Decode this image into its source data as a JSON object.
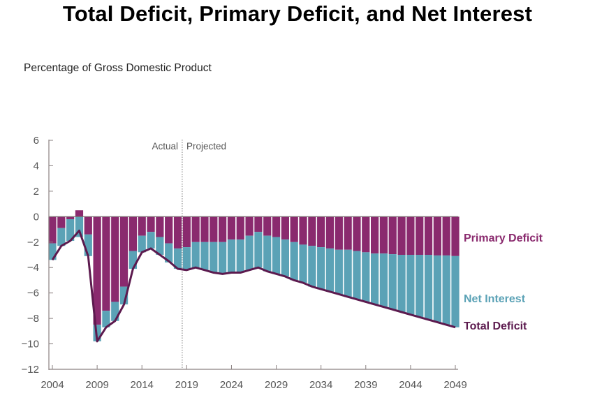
{
  "title": "Total Deficit, Primary Deficit, and Net Interest",
  "subtitle": "Percentage of Gross Domestic Product",
  "chart_data": {
    "type": "bar",
    "stacked": true,
    "title": "Total Deficit, Primary Deficit, and Net Interest",
    "ylabel": "Percentage of Gross Domestic Product",
    "xlabel": "",
    "ylim": [
      -12,
      6
    ],
    "yticks": [
      6,
      4,
      2,
      0,
      -2,
      -4,
      -6,
      -8,
      -10,
      -12
    ],
    "ytick_labels": [
      "6",
      "4",
      "2",
      "0",
      "−2",
      "−4",
      "−6",
      "−8",
      "−10",
      "−12"
    ],
    "xticks": [
      2004,
      2009,
      2014,
      2019,
      2024,
      2029,
      2034,
      2039,
      2044,
      2049
    ],
    "xtick_labels": [
      "2004",
      "2009",
      "2014",
      "2019",
      "2024",
      "2029",
      "2034",
      "2039",
      "2044",
      "2049"
    ],
    "grid": false,
    "annotations": {
      "actual_label": "Actual",
      "projected_label": "Projected",
      "divider_between": [
        2018,
        2019
      ]
    },
    "categories": [
      2004,
      2005,
      2006,
      2007,
      2008,
      2009,
      2010,
      2011,
      2012,
      2013,
      2014,
      2015,
      2016,
      2017,
      2018,
      2019,
      2020,
      2021,
      2022,
      2023,
      2024,
      2025,
      2026,
      2027,
      2028,
      2029,
      2030,
      2031,
      2032,
      2033,
      2034,
      2035,
      2036,
      2037,
      2038,
      2039,
      2040,
      2041,
      2042,
      2043,
      2044,
      2045,
      2046,
      2047,
      2048,
      2049
    ],
    "series": [
      {
        "name": "Primary Deficit",
        "type": "bar",
        "color": "#8a2a6e",
        "values": [
          -2.1,
          -0.9,
          -0.2,
          0.5,
          -1.4,
          -8.5,
          -7.4,
          -6.7,
          -5.5,
          -2.7,
          -1.5,
          -1.2,
          -1.6,
          -2.1,
          -2.5,
          -2.4,
          -2.0,
          -2.0,
          -2.0,
          -2.0,
          -1.8,
          -1.8,
          -1.5,
          -1.2,
          -1.5,
          -1.6,
          -1.8,
          -2.0,
          -2.2,
          -2.3,
          -2.4,
          -2.5,
          -2.6,
          -2.6,
          -2.7,
          -2.8,
          -2.9,
          -2.9,
          -2.95,
          -3.0,
          -3.0,
          -3.0,
          -3.0,
          -3.05,
          -3.05,
          -3.1
        ]
      },
      {
        "name": "Net Interest",
        "type": "bar",
        "color": "#5ba2b6",
        "values": [
          -1.3,
          -1.4,
          -1.7,
          -1.6,
          -1.7,
          -1.3,
          -1.3,
          -1.5,
          -1.4,
          -1.4,
          -1.3,
          -1.3,
          -1.4,
          -1.5,
          -1.6,
          -1.8,
          -2.0,
          -2.2,
          -2.4,
          -2.5,
          -2.6,
          -2.6,
          -2.7,
          -2.8,
          -2.8,
          -2.9,
          -2.9,
          -3.0,
          -3.0,
          -3.2,
          -3.3,
          -3.4,
          -3.5,
          -3.7,
          -3.8,
          -3.9,
          -4.0,
          -4.2,
          -4.35,
          -4.5,
          -4.7,
          -4.9,
          -5.1,
          -5.25,
          -5.45,
          -5.6
        ]
      },
      {
        "name": "Total Deficit",
        "type": "line",
        "color": "#5c1a4e",
        "values": [
          -3.4,
          -2.3,
          -1.9,
          -1.1,
          -3.1,
          -9.8,
          -8.7,
          -8.2,
          -6.9,
          -4.1,
          -2.8,
          -2.5,
          -3.0,
          -3.5,
          -4.1,
          -4.2,
          -4.0,
          -4.2,
          -4.4,
          -4.5,
          -4.4,
          -4.4,
          -4.2,
          -4.0,
          -4.3,
          -4.5,
          -4.7,
          -5.0,
          -5.2,
          -5.5,
          -5.7,
          -5.9,
          -6.1,
          -6.3,
          -6.5,
          -6.7,
          -6.9,
          -7.1,
          -7.3,
          -7.5,
          -7.7,
          -7.9,
          -8.1,
          -8.3,
          -8.5,
          -8.7
        ]
      }
    ],
    "legend": {
      "placement": "right (direct labels)",
      "entries": [
        {
          "label": "Primary Deficit",
          "color": "#8a2a6e"
        },
        {
          "label": "Net Interest",
          "color": "#5ba2b6"
        },
        {
          "label": "Total Deficit",
          "color": "#5c1a4e"
        }
      ]
    }
  }
}
